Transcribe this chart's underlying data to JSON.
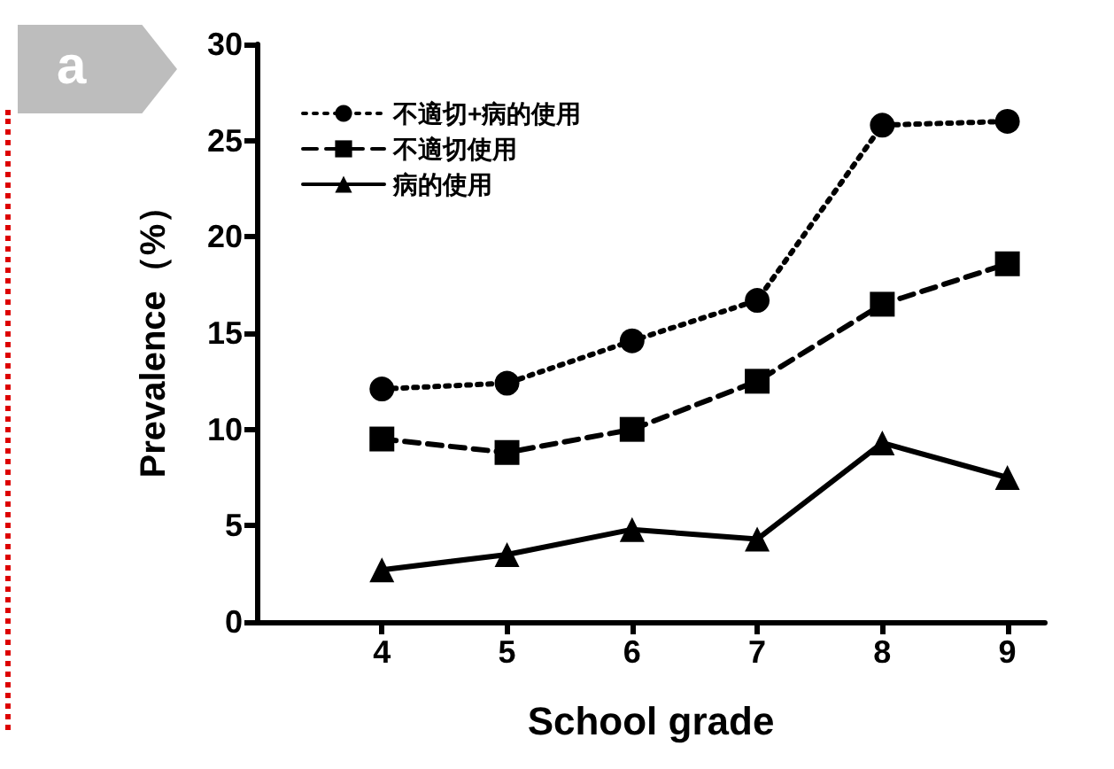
{
  "chart_data": {
    "type": "line",
    "xlabel": "School grade",
    "ylabel": "Prevalence（%）",
    "annotations": [
      "a"
    ],
    "x": [
      4,
      5,
      6,
      7,
      8,
      9
    ],
    "xlim": [
      3,
      9.3
    ],
    "xticks": [
      4,
      5,
      6,
      7,
      8,
      9
    ],
    "ylim": [
      0,
      30
    ],
    "yticks": [
      0,
      5,
      10,
      15,
      20,
      25,
      30
    ],
    "grid": false,
    "legend": "top left",
    "series": [
      {
        "name": "不適切+病的使用",
        "color": "#000000",
        "marker": "circle",
        "line_style": "dotted",
        "values": [
          12.1,
          12.4,
          14.6,
          16.7,
          25.8,
          26.0
        ]
      },
      {
        "name": "不適切使用",
        "color": "#000000",
        "marker": "square",
        "line_style": "dashed",
        "values": [
          9.5,
          8.8,
          10.0,
          12.5,
          16.5,
          18.6
        ]
      },
      {
        "name": "病的使用",
        "color": "#000000",
        "marker": "triangle",
        "line_style": "solid",
        "values": [
          2.7,
          3.5,
          4.8,
          4.3,
          9.3,
          7.5
        ]
      }
    ]
  }
}
